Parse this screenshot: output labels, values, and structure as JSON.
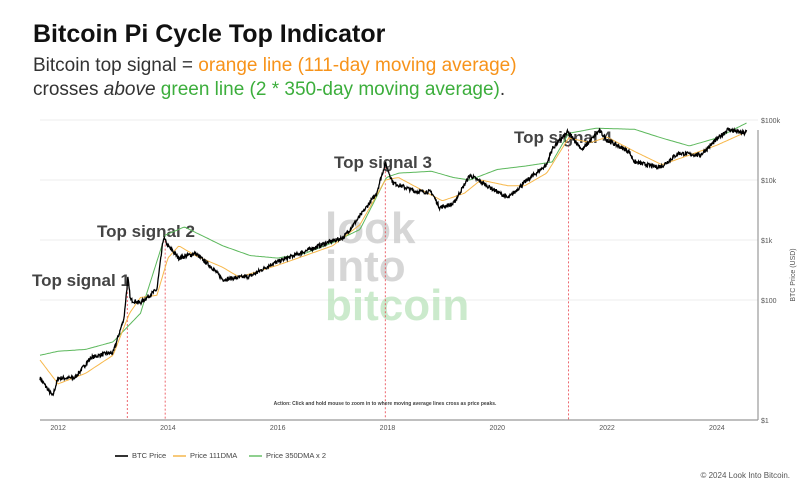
{
  "header": {
    "title": "Bitcoin Pi Cycle Top Indicator",
    "line1_prefix": "Bitcoin top signal = ",
    "line1_orange": "orange line (111-day moving average)",
    "line2_prefix": "crosses ",
    "line2_em": "above",
    "line2_green": " green line (2 * 350-day moving average)",
    "line2_suffix": "."
  },
  "chart_data": {
    "type": "line",
    "title": "Bitcoin Pi Cycle Top Indicator",
    "ylabel": "BTC Price (USD)",
    "yscale": "log",
    "ylim": [
      1,
      100000
    ],
    "xlim": [
      2011.67,
      2024.75
    ],
    "x_ticks": [
      "2012",
      "2014",
      "2016",
      "2018",
      "2020",
      "2022",
      "2024"
    ],
    "y_ticks": [
      "$1",
      "$100",
      "$1k",
      "$10k",
      "$100k"
    ],
    "grid": true,
    "legend": "bottom-left",
    "colors": {
      "price": "#000000",
      "ma111": "#f7b84b",
      "ma350x2": "#5cb85c",
      "signal": "#e8414a"
    },
    "series": [
      {
        "name": "BTC Price",
        "points": [
          [
            2011.67,
            5
          ],
          [
            2011.9,
            2.5
          ],
          [
            2012.0,
            5
          ],
          [
            2012.3,
            5
          ],
          [
            2012.6,
            11
          ],
          [
            2012.9,
            13
          ],
          [
            2013.0,
            13
          ],
          [
            2013.2,
            50
          ],
          [
            2013.27,
            230
          ],
          [
            2013.32,
            100
          ],
          [
            2013.5,
            90
          ],
          [
            2013.8,
            150
          ],
          [
            2013.92,
            1100
          ],
          [
            2014.0,
            800
          ],
          [
            2014.2,
            500
          ],
          [
            2014.5,
            600
          ],
          [
            2014.8,
            350
          ],
          [
            2015.0,
            220
          ],
          [
            2015.5,
            250
          ],
          [
            2015.9,
            400
          ],
          [
            2016.5,
            650
          ],
          [
            2016.9,
            900
          ],
          [
            2017.2,
            1100
          ],
          [
            2017.5,
            2500
          ],
          [
            2017.8,
            6000
          ],
          [
            2017.96,
            19000
          ],
          [
            2018.1,
            9000
          ],
          [
            2018.5,
            6500
          ],
          [
            2018.8,
            6300
          ],
          [
            2018.95,
            3500
          ],
          [
            2019.2,
            4000
          ],
          [
            2019.5,
            12000
          ],
          [
            2019.9,
            7200
          ],
          [
            2020.2,
            5000
          ],
          [
            2020.5,
            9200
          ],
          [
            2020.9,
            18000
          ],
          [
            2021.0,
            33000
          ],
          [
            2021.28,
            63000
          ],
          [
            2021.55,
            32000
          ],
          [
            2021.86,
            67000
          ],
          [
            2022.0,
            46000
          ],
          [
            2022.4,
            30000
          ],
          [
            2022.5,
            20000
          ],
          [
            2022.9,
            16500
          ],
          [
            2023.0,
            17000
          ],
          [
            2023.3,
            28000
          ],
          [
            2023.7,
            26000
          ],
          [
            2023.95,
            43000
          ],
          [
            2024.2,
            70000
          ],
          [
            2024.5,
            60000
          ],
          [
            2024.55,
            65000
          ]
        ]
      },
      {
        "name": "Price 111DMA",
        "points": [
          [
            2011.67,
            10
          ],
          [
            2012.0,
            4
          ],
          [
            2012.5,
            6
          ],
          [
            2013.0,
            12
          ],
          [
            2013.3,
            60
          ],
          [
            2013.5,
            110
          ],
          [
            2013.8,
            120
          ],
          [
            2014.0,
            500
          ],
          [
            2014.2,
            800
          ],
          [
            2014.5,
            550
          ],
          [
            2015.0,
            350
          ],
          [
            2015.3,
            240
          ],
          [
            2016.0,
            380
          ],
          [
            2016.5,
            550
          ],
          [
            2017.0,
            800
          ],
          [
            2017.5,
            1800
          ],
          [
            2017.96,
            10000
          ],
          [
            2018.2,
            11000
          ],
          [
            2018.6,
            7000
          ],
          [
            2019.0,
            4500
          ],
          [
            2019.4,
            6000
          ],
          [
            2019.7,
            10000
          ],
          [
            2020.2,
            8000
          ],
          [
            2020.5,
            8000
          ],
          [
            2020.9,
            13000
          ],
          [
            2021.3,
            50000
          ],
          [
            2021.7,
            42000
          ],
          [
            2022.0,
            52000
          ],
          [
            2022.5,
            30000
          ],
          [
            2023.0,
            18000
          ],
          [
            2023.5,
            26000
          ],
          [
            2024.0,
            38000
          ],
          [
            2024.55,
            64000
          ]
        ]
      },
      {
        "name": "Price 350DMA x 2",
        "points": [
          [
            2011.67,
            12
          ],
          [
            2012.0,
            14
          ],
          [
            2012.5,
            15
          ],
          [
            2013.0,
            20
          ],
          [
            2013.5,
            60
          ],
          [
            2013.95,
            1200
          ],
          [
            2014.3,
            1650
          ],
          [
            2015.0,
            800
          ],
          [
            2015.5,
            550
          ],
          [
            2016.0,
            500
          ],
          [
            2016.5,
            600
          ],
          [
            2017.0,
            900
          ],
          [
            2017.5,
            1500
          ],
          [
            2017.98,
            11000
          ],
          [
            2018.2,
            13000
          ],
          [
            2018.8,
            14000
          ],
          [
            2019.2,
            11000
          ],
          [
            2019.5,
            10000
          ],
          [
            2020.0,
            15000
          ],
          [
            2020.5,
            17000
          ],
          [
            2021.0,
            20000
          ],
          [
            2021.3,
            60000
          ],
          [
            2021.8,
            73000
          ],
          [
            2022.5,
            70000
          ],
          [
            2023.0,
            50000
          ],
          [
            2023.5,
            37000
          ],
          [
            2024.0,
            50000
          ],
          [
            2024.55,
            90000
          ]
        ]
      }
    ],
    "annotations": [
      {
        "label": "Top signal 1",
        "x": 2013.26
      },
      {
        "label": "Top signal 2",
        "x": 2013.95
      },
      {
        "label": "Top signal 3",
        "x": 2017.96
      },
      {
        "label": "Top signal 4",
        "x": 2021.3
      }
    ],
    "note": "Action: Click and hold mouse to zoom in to where moving average lines cross as price peaks."
  },
  "watermark": [
    "look",
    "into",
    "bitcoin"
  ],
  "copyright": "© 2024 Look Into Bitcoin."
}
